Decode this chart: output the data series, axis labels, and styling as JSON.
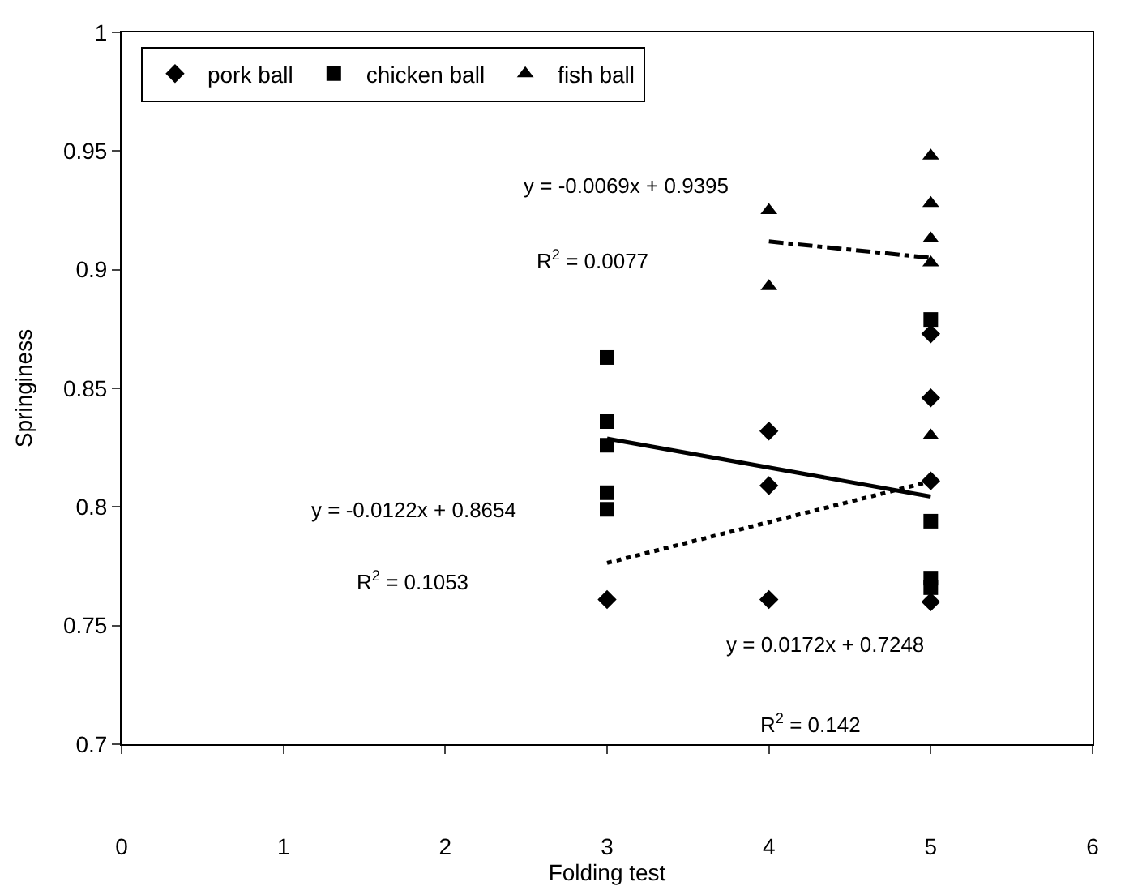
{
  "chart_data": {
    "type": "scatter",
    "xlabel": "Folding test",
    "ylabel": "Springiness",
    "xlim": [
      0,
      6
    ],
    "xticks": [
      0,
      1,
      2,
      3,
      4,
      5,
      6
    ],
    "ylim": [
      0.7,
      1
    ],
    "yticks": [
      0.7,
      0.75,
      0.8,
      0.85,
      0.9,
      0.95,
      1
    ],
    "legend": "top left",
    "series": [
      {
        "name": "pork ball",
        "color": "#000000",
        "marker": "diamond",
        "x": [
          3,
          4,
          4,
          4,
          5,
          5,
          5,
          5
        ],
        "values": [
          0.761,
          0.832,
          0.809,
          0.761,
          0.873,
          0.846,
          0.811,
          0.76
        ]
      },
      {
        "name": "chicken ball",
        "color": "#000000",
        "marker": "square",
        "x": [
          3,
          3,
          3,
          3,
          3,
          5,
          5,
          5,
          5
        ],
        "values": [
          0.863,
          0.836,
          0.826,
          0.806,
          0.799,
          0.879,
          0.794,
          0.77,
          0.766
        ]
      },
      {
        "name": "fish ball",
        "color": "#000000",
        "marker": "triangle",
        "x": [
          4,
          4,
          5,
          5,
          5,
          5,
          5
        ],
        "values": [
          0.925,
          0.893,
          0.948,
          0.928,
          0.913,
          0.903,
          0.83
        ]
      },
      {
        "type": "line",
        "color": "#000000",
        "marker": "none",
        "line_style": "dotted",
        "x": [
          3,
          5
        ],
        "values": [
          0.7764,
          0.8108
        ]
      },
      {
        "type": "line",
        "color": "#000000",
        "marker": "none",
        "line_style": "solid",
        "x": [
          3,
          5
        ],
        "values": [
          0.8288,
          0.8044
        ]
      },
      {
        "type": "line",
        "color": "#000000",
        "marker": "none",
        "line_style": "dashed",
        "x": [
          4,
          5
        ],
        "values": [
          0.9119,
          0.905
        ]
      }
    ],
    "annotations": [
      "y = -0.0069x + 0.9395",
      "R$^{2}$ = 0.0077",
      "y = -0.0122x + 0.8654",
      "R$^{2}$ = 0.1053",
      "y = 0.0172x + 0.7248",
      "R$^{2}$ = 0.142"
    ]
  }
}
